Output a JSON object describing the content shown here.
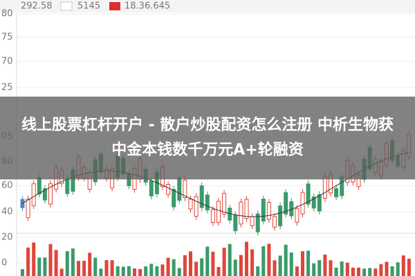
{
  "legend": [
    {
      "label": "292.58"
    },
    {
      "label": "5145"
    },
    {
      "label": "18.36.645"
    }
  ],
  "axis_labels": [
    "80",
    "75",
    "70",
    "25",
    "05",
    "80",
    "60",
    "40",
    "20",
    "0"
  ],
  "banner": {
    "title": "线上股票杠杆开户 - 散户炒股配资怎么注册 中析生物获中金本钱数千万元A+轮融资"
  }
}
